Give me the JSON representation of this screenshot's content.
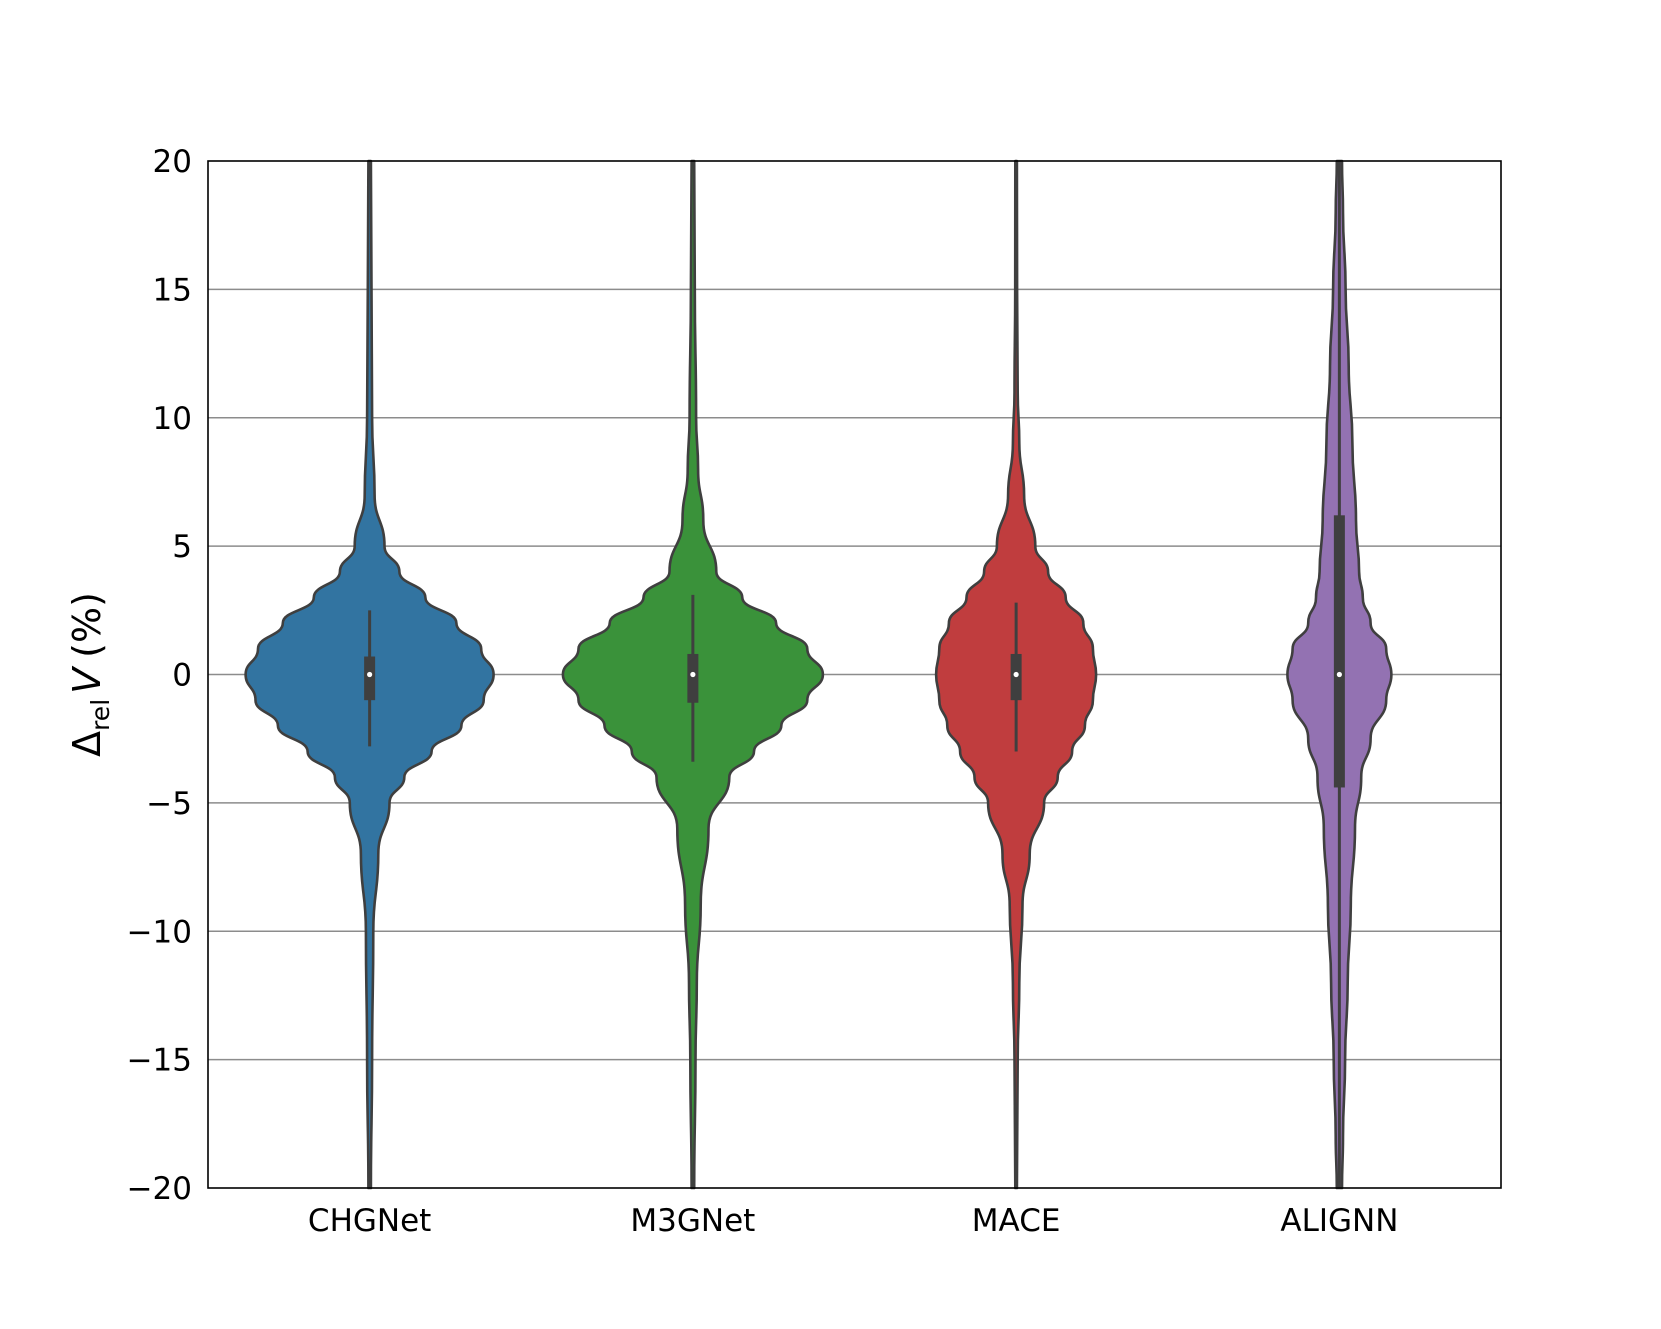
{
  "chart_data": {
    "type": "violin",
    "title": "",
    "xlabel": "",
    "ylabel": {
      "symbol": "Δ",
      "subscript": "rel",
      "variable": "V",
      "unit": "(%)"
    },
    "ylim": [
      -20,
      20
    ],
    "yticks": [
      -20,
      -15,
      -10,
      -5,
      0,
      5,
      10,
      15,
      20
    ],
    "ytick_labels": [
      "−20",
      "−15",
      "−10",
      "−5",
      "0",
      "5",
      "10",
      "15",
      "20"
    ],
    "grid": "horizontal",
    "legend": "none",
    "categories": [
      "CHGNet",
      "M3GNet",
      "MACE",
      "ALIGNN"
    ],
    "series": [
      {
        "category": "CHGNet",
        "color": "#3274a1",
        "median": 0,
        "q1": -1.0,
        "q3": 0.7,
        "whisker_low": -2.8,
        "whisker_high": 2.5,
        "profile": [
          [
            -20,
            0.01
          ],
          [
            -15,
            0.02
          ],
          [
            -10,
            0.03
          ],
          [
            -7,
            0.07
          ],
          [
            -5,
            0.16
          ],
          [
            -4,
            0.28
          ],
          [
            -3,
            0.5
          ],
          [
            -2,
            0.74
          ],
          [
            -1,
            0.92
          ],
          [
            0,
            1.0
          ],
          [
            1,
            0.9
          ],
          [
            2,
            0.7
          ],
          [
            3,
            0.45
          ],
          [
            4,
            0.24
          ],
          [
            5,
            0.12
          ],
          [
            7,
            0.04
          ],
          [
            10,
            0.02
          ],
          [
            15,
            0.015
          ],
          [
            20,
            0.01
          ]
        ]
      },
      {
        "category": "M3GNet",
        "color": "#3a923a",
        "median": 0,
        "q1": -1.1,
        "q3": 0.8,
        "whisker_low": -3.4,
        "whisker_high": 3.1,
        "profile": [
          [
            -20,
            0.01
          ],
          [
            -15,
            0.02
          ],
          [
            -12,
            0.03
          ],
          [
            -9,
            0.06
          ],
          [
            -6,
            0.12
          ],
          [
            -4,
            0.28
          ],
          [
            -3,
            0.47
          ],
          [
            -2,
            0.68
          ],
          [
            -1,
            0.88
          ],
          [
            0,
            1.0
          ],
          [
            1,
            0.88
          ],
          [
            2,
            0.64
          ],
          [
            3,
            0.38
          ],
          [
            4,
            0.18
          ],
          [
            6,
            0.08
          ],
          [
            8,
            0.04
          ],
          [
            10,
            0.025
          ],
          [
            15,
            0.015
          ],
          [
            20,
            0.01
          ]
        ]
      },
      {
        "category": "MACE",
        "color": "#c03d3e",
        "median": 0,
        "q1": -1.0,
        "q3": 0.8,
        "whisker_low": -3.0,
        "whisker_high": 2.8,
        "profile": [
          [
            -20,
            0.01
          ],
          [
            -15,
            0.02
          ],
          [
            -12,
            0.04
          ],
          [
            -9,
            0.08
          ],
          [
            -7,
            0.17
          ],
          [
            -5,
            0.35
          ],
          [
            -4,
            0.52
          ],
          [
            -3,
            0.7
          ],
          [
            -2,
            0.86
          ],
          [
            -1,
            0.96
          ],
          [
            0,
            1.0
          ],
          [
            1,
            0.96
          ],
          [
            2,
            0.84
          ],
          [
            3,
            0.62
          ],
          [
            4,
            0.4
          ],
          [
            5,
            0.24
          ],
          [
            7,
            0.1
          ],
          [
            9,
            0.04
          ],
          [
            11,
            0.02
          ],
          [
            15,
            0.012
          ],
          [
            20,
            0.01
          ]
        ]
      },
      {
        "category": "ALIGNN",
        "color": "#9372b2",
        "median": 0,
        "q1": -4.4,
        "q3": 6.2,
        "whisker_low": -20,
        "whisker_high": 20,
        "profile": [
          [
            -20,
            0.05
          ],
          [
            -18,
            0.07
          ],
          [
            -15,
            0.11
          ],
          [
            -12,
            0.16
          ],
          [
            -9,
            0.22
          ],
          [
            -6,
            0.3
          ],
          [
            -4,
            0.42
          ],
          [
            -2.5,
            0.6
          ],
          [
            -1,
            0.9
          ],
          [
            0,
            1.0
          ],
          [
            1,
            0.9
          ],
          [
            2,
            0.6
          ],
          [
            3,
            0.45
          ],
          [
            4,
            0.38
          ],
          [
            6,
            0.32
          ],
          [
            9,
            0.25
          ],
          [
            12,
            0.18
          ],
          [
            15,
            0.12
          ],
          [
            18,
            0.07
          ],
          [
            20,
            0.05
          ]
        ]
      }
    ]
  }
}
